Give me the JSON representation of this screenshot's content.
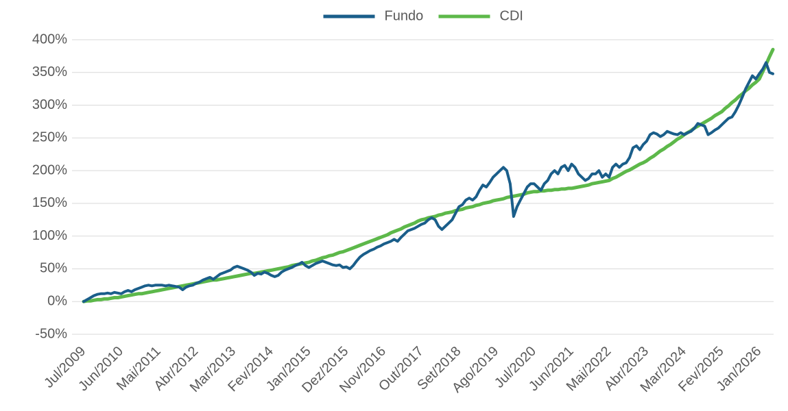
{
  "chart_data": {
    "type": "line",
    "legend": "top",
    "categories": [
      "Jul/2009",
      null,
      null,
      null,
      null,
      null,
      null,
      null,
      null,
      null,
      null,
      "Jun/2010",
      null,
      null,
      null,
      null,
      null,
      null,
      null,
      null,
      null,
      null,
      "Mai/2011",
      null,
      null,
      null,
      null,
      null,
      null,
      null,
      null,
      null,
      null,
      "Abr/2012",
      null,
      null,
      null,
      null,
      null,
      null,
      null,
      null,
      null,
      null,
      "Mar/2013",
      null,
      null,
      null,
      null,
      null,
      null,
      null,
      null,
      null,
      null,
      "Fev/2014",
      null,
      null,
      null,
      null,
      null,
      null,
      null,
      null,
      null,
      null,
      "Jan/2015",
      null,
      null,
      null,
      null,
      null,
      null,
      null,
      null,
      null,
      null,
      "Dez/2015",
      null,
      null,
      null,
      null,
      null,
      null,
      null,
      null,
      null,
      null,
      "Nov/2016",
      null,
      null,
      null,
      null,
      null,
      null,
      null,
      null,
      null,
      null,
      "Out/2017",
      null,
      null,
      null,
      null,
      null,
      null,
      null,
      null,
      null,
      null,
      "Set/2018",
      null,
      null,
      null,
      null,
      null,
      null,
      null,
      null,
      null,
      null,
      "Ago/2019",
      null,
      null,
      null,
      null,
      null,
      null,
      null,
      null,
      null,
      null,
      "Jul/2020",
      null,
      null,
      null,
      null,
      null,
      null,
      null,
      null,
      null,
      null,
      "Jun/2021",
      null,
      null,
      null,
      null,
      null,
      null,
      null,
      null,
      null,
      null,
      "Mai/2022",
      null,
      null,
      null,
      null,
      null,
      null,
      null,
      null,
      null,
      null,
      "Abr/2023",
      null,
      null,
      null,
      null,
      null,
      null,
      null,
      null,
      null,
      null,
      "Mar/2024",
      null,
      null,
      null,
      null,
      null,
      null,
      null,
      null,
      null,
      null,
      "Fev/2025",
      null,
      null,
      null,
      null,
      null,
      null,
      null,
      null,
      null,
      null,
      "Jan/2026",
      null,
      null,
      null,
      null
    ],
    "series": [
      {
        "name": "Fundo",
        "color": "#1a5e8a",
        "values": [
          0,
          3,
          6,
          9,
          11,
          12,
          12,
          13,
          12,
          14,
          13,
          12,
          15,
          17,
          15,
          18,
          20,
          22,
          24,
          25,
          24,
          25,
          25,
          25,
          24,
          25,
          24,
          23,
          22,
          18,
          22,
          24,
          25,
          28,
          30,
          33,
          35,
          37,
          34,
          38,
          42,
          44,
          46,
          48,
          52,
          54,
          52,
          50,
          48,
          45,
          40,
          43,
          42,
          45,
          43,
          40,
          38,
          40,
          45,
          48,
          50,
          52,
          55,
          57,
          60,
          55,
          52,
          55,
          58,
          60,
          62,
          60,
          58,
          56,
          55,
          56,
          52,
          53,
          50,
          55,
          62,
          68,
          72,
          75,
          78,
          80,
          83,
          85,
          88,
          90,
          92,
          95,
          92,
          98,
          103,
          108,
          110,
          112,
          115,
          118,
          120,
          125,
          128,
          125,
          115,
          110,
          115,
          120,
          125,
          135,
          145,
          148,
          155,
          158,
          155,
          160,
          170,
          178,
          175,
          182,
          190,
          195,
          200,
          205,
          200,
          180,
          130,
          145,
          155,
          165,
          175,
          180,
          180,
          175,
          170,
          180,
          185,
          195,
          200,
          195,
          205,
          208,
          200,
          210,
          205,
          195,
          190,
          185,
          188,
          195,
          195,
          200,
          190,
          195,
          190,
          205,
          210,
          205,
          210,
          212,
          220,
          235,
          238,
          232,
          240,
          245,
          255,
          258,
          256,
          252,
          255,
          260,
          258,
          256,
          255,
          258,
          255,
          258,
          260,
          265,
          272,
          270,
          268,
          255,
          258,
          262,
          265,
          270,
          275,
          280,
          282,
          290,
          300,
          312,
          325,
          335,
          345,
          340,
          348,
          355,
          365,
          350,
          348
        ]
      },
      {
        "name": "CDI",
        "color": "#5db84a",
        "values": [
          0,
          1,
          1,
          2,
          3,
          3,
          4,
          4,
          5,
          6,
          6,
          7,
          8,
          9,
          10,
          11,
          12,
          12,
          13,
          14,
          15,
          16,
          17,
          18,
          19,
          20,
          21,
          22,
          23,
          24,
          25,
          26,
          27,
          28,
          29,
          30,
          31,
          32,
          33,
          33,
          34,
          35,
          36,
          37,
          38,
          39,
          40,
          41,
          42,
          43,
          43,
          44,
          45,
          46,
          47,
          48,
          49,
          50,
          51,
          52,
          53,
          55,
          56,
          57,
          58,
          59,
          60,
          62,
          63,
          65,
          67,
          68,
          70,
          71,
          73,
          75,
          76,
          78,
          80,
          82,
          84,
          86,
          88,
          90,
          92,
          94,
          96,
          98,
          100,
          102,
          105,
          107,
          109,
          111,
          114,
          116,
          118,
          120,
          123,
          125,
          126,
          128,
          129,
          130,
          132,
          133,
          135,
          136,
          137,
          139,
          140,
          141,
          143,
          144,
          145,
          147,
          148,
          150,
          151,
          152,
          154,
          155,
          156,
          157,
          159,
          160,
          161,
          162,
          163,
          164,
          166,
          167,
          168,
          168,
          169,
          169,
          170,
          170,
          171,
          171,
          172,
          172,
          173,
          173,
          174,
          175,
          176,
          177,
          178,
          180,
          181,
          182,
          183,
          184,
          185,
          188,
          190,
          193,
          196,
          199,
          201,
          204,
          207,
          210,
          212,
          215,
          219,
          222,
          226,
          230,
          233,
          237,
          240,
          244,
          248,
          251,
          255,
          258,
          261,
          265,
          268,
          271,
          274,
          277,
          280,
          284,
          287,
          290,
          295,
          299,
          304,
          308,
          313,
          317,
          322,
          326,
          331,
          335,
          340,
          351,
          362,
          374,
          385
        ]
      }
    ],
    "ylim": [
      -50,
      400
    ],
    "yticks": [
      {
        "value": -50,
        "label": "-50%"
      },
      {
        "value": 0,
        "label": "0%"
      },
      {
        "value": 50,
        "label": "50%"
      },
      {
        "value": 100,
        "label": "100%"
      },
      {
        "value": 150,
        "label": "150%"
      },
      {
        "value": 200,
        "label": "200%"
      },
      {
        "value": 250,
        "label": "250%"
      },
      {
        "value": 300,
        "label": "300%"
      },
      {
        "value": 350,
        "label": "350%"
      },
      {
        "value": 400,
        "label": "400%"
      }
    ],
    "grid": true
  }
}
